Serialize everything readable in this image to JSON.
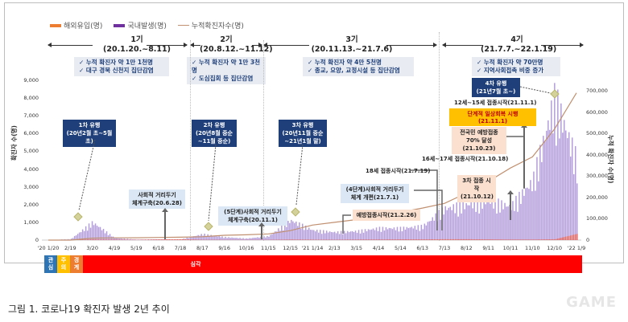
{
  "legend": {
    "overseas": {
      "label": "해외유입(명)",
      "color": "#ed7d31"
    },
    "domestic": {
      "label": "국내발생(명)",
      "color": "#7030a0"
    },
    "cumulative": {
      "label": "누적확진자수(명)",
      "color": "#c09070"
    }
  },
  "periods": [
    {
      "name": "1기",
      "range": "(20.1.20.~8.11)",
      "info": [
        "✓ 누적 확진자 약 1만 1천명",
        "✓ 대구 경북 신천지 집단감염"
      ]
    },
    {
      "name": "2기",
      "range": "(20.8.12.~11.12)",
      "info": [
        "✓ 누적 확진자 약 1만 3천명",
        "✓ 도심집회 등 집단감염"
      ]
    },
    {
      "name": "3기",
      "range": "(20.11.13.~21.7.6)",
      "info": [
        "✓ 누적 확진자 약 4만 5천명",
        "✓ 종교, 요양, 교정시설 등 집단감염"
      ]
    },
    {
      "name": "4기",
      "range": "(21.7.7.~22.1.19)",
      "info": [
        "✓ 누적 확진자 약 70만명",
        "✓ 지역사회접촉 비중 증가"
      ]
    }
  ],
  "axes": {
    "left_title": "확진자 수(명)",
    "right_title": "누적 확진자 수(명)",
    "left_ticks": [
      "9,000",
      "8,000",
      "7,000",
      "6,000",
      "5,000",
      "4,000",
      "3,000",
      "2,000",
      "1,000",
      "0"
    ],
    "right_ticks": [
      "700,000",
      "600,000",
      "500,000",
      "400,000",
      "300,000",
      "200,000",
      "100,000",
      "0"
    ],
    "x_ticks": [
      "'20 1/20",
      "2/19",
      "3/20",
      "4/19",
      "5/19",
      "6/18",
      "7/18",
      "8/17",
      "9/16",
      "10/16",
      "11/15",
      "12/15",
      "'21 1/14",
      "2/13",
      "3/15",
      "4/14",
      "5/14",
      "6/13",
      "7/13",
      "8/12",
      "9/11",
      "10/11",
      "11/10",
      "12/10",
      "'22 1/9"
    ]
  },
  "waves": [
    {
      "label1": "1차 유행",
      "label2": "(20년2월 초~5월 초)"
    },
    {
      "label1": "2차 유행",
      "label2": "(20년8월 중순",
      "label3": "~11월 중순)"
    },
    {
      "label1": "3차 유행",
      "label2": "(20년11월 중순",
      "label3": "~21년1월 말)"
    },
    {
      "label1": "4차 유행",
      "label2": "(21년7월 초~)"
    }
  ],
  "events": {
    "distancing_2020": {
      "line1": "사회적 거리두기",
      "line2": "체계구축(20.6.28)"
    },
    "distancing_5step": {
      "line1": "(5단계)사회적 거리두기",
      "line2": "체계구축(20.11.1)"
    },
    "vaccination_start": "예방접종시작(21.2.26)",
    "distancing_4step": {
      "line1": "(4단계)사회적 거리두기",
      "line2": "체계 개편(21.7.1)"
    },
    "age18": "18세 접종시작(21.7.19)",
    "booster": {
      "line1": "3차 접종 시작",
      "line2": "(21.10.12)"
    },
    "age16_17": "16세~17세 접종시작(21.10.18)",
    "vacc70": {
      "line1": "전국민 예방접종",
      "line2": "70% 달성",
      "line3": "(21.10.23)"
    },
    "recovery": "단계적 일상회복 시행(21.11.1)",
    "age12_15": "12세~15세 접종시작(21.11.1)"
  },
  "stages": [
    {
      "label": "관심",
      "color": "#2e75b6"
    },
    {
      "label": "주의",
      "color": "#ffc000"
    },
    {
      "label": "경계",
      "color": "#ed7d31"
    },
    {
      "label": "심각",
      "color": "#ff0000"
    }
  ],
  "caption": "그림 1. 코로나19 확진자 발생 2년 추이",
  "watermark": "GAME",
  "chart_data": {
    "type": "bar",
    "title": "코로나19 확진자 발생 2년 추이",
    "xlabel": "",
    "ylabel": "확진자 수(명)",
    "ylabel_right": "누적 확진자 수(명)",
    "ylim": [
      0,
      9000
    ],
    "ylim_right": [
      0,
      700000
    ],
    "categories": [
      "'20 1/20",
      "2/19",
      "3/20",
      "4/19",
      "5/19",
      "6/18",
      "7/18",
      "8/17",
      "9/16",
      "10/16",
      "11/15",
      "12/15",
      "'21 1/14",
      "2/13",
      "3/15",
      "4/14",
      "5/14",
      "6/13",
      "7/13",
      "8/12",
      "9/11",
      "10/11",
      "11/10",
      "12/10",
      "'22 1/9"
    ],
    "series": [
      {
        "name": "국내발생(명)",
        "type": "bar",
        "values": [
          0,
          50,
          900,
          100,
          30,
          40,
          40,
          300,
          150,
          80,
          200,
          1000,
          500,
          400,
          450,
          600,
          600,
          700,
          1600,
          1800,
          2000,
          1700,
          3000,
          7200,
          4000
        ]
      },
      {
        "name": "해외유입(명)",
        "type": "bar",
        "values": [
          0,
          5,
          40,
          30,
          20,
          40,
          50,
          20,
          15,
          15,
          15,
          30,
          25,
          20,
          30,
          30,
          40,
          40,
          50,
          50,
          40,
          30,
          30,
          50,
          350
        ]
      },
      {
        "name": "누적확진자수(명)",
        "type": "line",
        "values": [
          1,
          30,
          9000,
          10600,
          11100,
          12300,
          13700,
          15800,
          22600,
          25000,
          28800,
          44400,
          70200,
          83200,
          96000,
          112000,
          131000,
          150000,
          172000,
          220000,
          275000,
          338000,
          390000,
          520000,
          690000
        ]
      }
    ],
    "annotations": [
      "1차 유행 (20년2월 초~5월 초)",
      "2차 유행 (20년8월 중순~11월 중순)",
      "3차 유행 (20년11월 중순~21년1월 말)",
      "4차 유행 (21년7월 초~)",
      "사회적 거리두기 체계구축(20.6.28)",
      "(5단계)사회적 거리두기 체계구축(20.11.1)",
      "예방접종시작(21.2.26)",
      "(4단계)사회적 거리두기 체계 개편(21.7.1)",
      "18세 접종시작(21.7.19)",
      "3차 접종 시작(21.10.12)",
      "16세~17세 접종시작(21.10.18)",
      "전국민 예방접종 70% 달성(21.10.23)",
      "단계적 일상회복 시행(21.11.1)",
      "12세~15세 접종시작(21.11.1)"
    ],
    "legend_position": "top-left",
    "grid": false
  }
}
